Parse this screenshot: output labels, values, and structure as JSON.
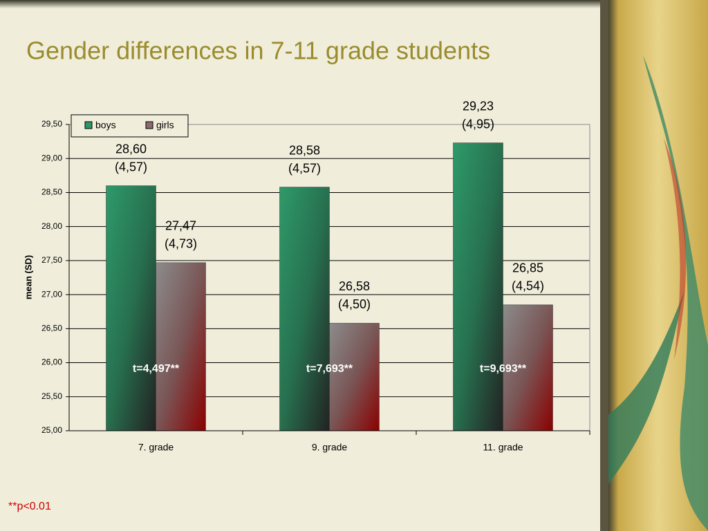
{
  "chart_data": {
    "type": "bar",
    "title": "Gender differences in 7-11 grade students",
    "y_label": "mean (SD)",
    "categories": [
      "7. grade",
      "9. grade",
      "11. grade"
    ],
    "series": [
      {
        "name": "boys",
        "color": "#2e9566",
        "values": [
          28.6,
          28.58,
          29.23
        ],
        "value_labels": [
          "28,60",
          "28,58",
          "29,23"
        ],
        "sd_labels": [
          "(4,57)",
          "(4,57)",
          "(4,95)"
        ]
      },
      {
        "name": "girls",
        "color": "#8a6a6a",
        "values": [
          27.47,
          26.58,
          26.85
        ],
        "value_labels": [
          "27,47",
          "26,58",
          "26,85"
        ],
        "sd_labels": [
          "(4,73)",
          "(4,50)",
          "(4,54)"
        ]
      }
    ],
    "t_labels": [
      "t=4,497**",
      "t=7,693**",
      "t=9,693**"
    ],
    "footnote": "**p<0.01",
    "ylim": [
      25,
      29.5
    ],
    "yticks": [
      {
        "value": 25,
        "label": "25,00"
      },
      {
        "value": 25.5,
        "label": "25,50"
      },
      {
        "value": 26,
        "label": "26,00"
      },
      {
        "value": 26.5,
        "label": "26,50"
      },
      {
        "value": 27,
        "label": "27,00"
      },
      {
        "value": 27.5,
        "label": "27,50"
      },
      {
        "value": 28,
        "label": "28,00"
      },
      {
        "value": 28.5,
        "label": "28,50"
      },
      {
        "value": 29,
        "label": "29,00"
      },
      {
        "value": 29.5,
        "label": "29,50"
      }
    ],
    "grid": true,
    "legend": "top-left"
  }
}
